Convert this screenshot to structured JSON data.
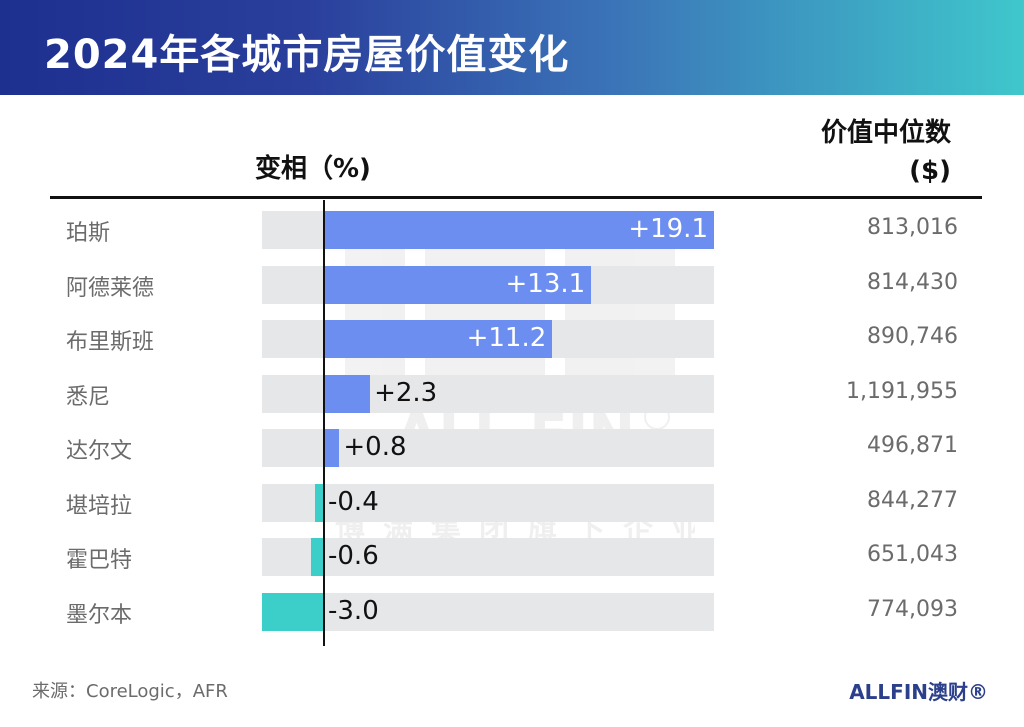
{
  "header": {
    "title": "2024年各城市房屋价值变化"
  },
  "columns": {
    "change_label": "变相（%)",
    "median_line1": "价值中位数",
    "median_line2": "($)"
  },
  "footer": {
    "source": "来源：CoreLogic，AFR",
    "brand": "ALLFIN澳财®"
  },
  "watermark": {
    "logo": "ALL FIN",
    "subtitle": "博满集团旗下企业"
  },
  "colors": {
    "positive": "#6c8ef0",
    "negative": "#3ccfc9",
    "track": "#e6e7e9",
    "header_start": "#1d2f8f",
    "header_end": "#3fc7cc"
  },
  "chart_data": {
    "type": "bar",
    "orientation": "horizontal",
    "categories": [
      "珀斯",
      "阿德莱德",
      "布里斯班",
      "悉尼",
      "达尔文",
      "堪培拉",
      "霍巴特",
      "墨尔本"
    ],
    "values": [
      19.1,
      13.1,
      11.2,
      2.3,
      0.8,
      -0.4,
      -0.6,
      -3.0
    ],
    "value_labels": [
      "+19.1",
      "+13.1",
      "+11.2",
      "+2.3",
      "+0.8",
      "-0.4",
      "-0.6",
      "-3.0"
    ],
    "median_values": [
      "813,016",
      "814,430",
      "890,746",
      "1,191,955",
      "496,871",
      "844,277",
      "651,043",
      "774,093"
    ],
    "xlim": [
      -3.0,
      19.1
    ]
  }
}
